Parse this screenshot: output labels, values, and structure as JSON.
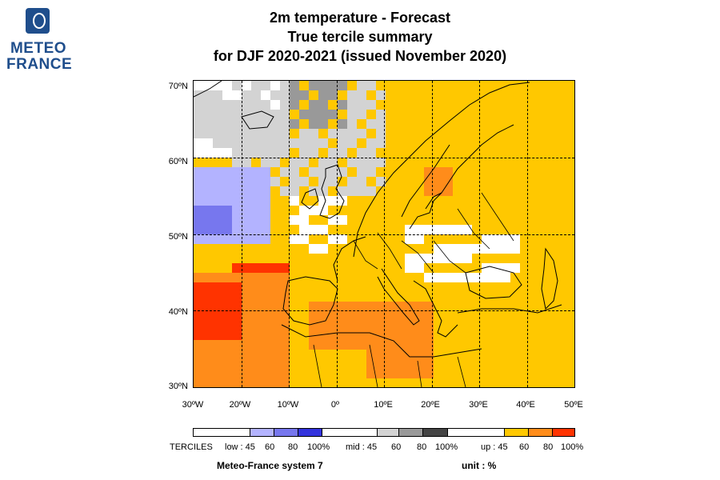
{
  "logo": {
    "line1": "METEO",
    "line2": "FRANCE"
  },
  "title": {
    "line1": "2m temperature   -   Forecast",
    "line2": "True tercile summary",
    "line3": "for DJF 2020-2021   (issued November 2020)"
  },
  "axes": {
    "lat_labels": [
      "70ºN",
      "60ºN",
      "50ºN",
      "40ºN",
      "30ºN"
    ],
    "lon_labels": [
      "30ºW",
      "20ºW",
      "10ºW",
      "0º",
      "10ºE",
      "20ºE",
      "30ºE",
      "40ºE",
      "50ºE"
    ]
  },
  "legend": {
    "prefix": "TERCILES",
    "low": [
      "low : 45",
      "60",
      "80",
      "100%"
    ],
    "mid": [
      "mid : 45",
      "60",
      "80",
      "100%"
    ],
    "up": [
      "up : 45",
      "60",
      "80",
      "100%"
    ],
    "colors": {
      "low": [
        "#b3b3ff",
        "#7777ee",
        "#3333dd"
      ],
      "mid": [
        "#d3d3d3",
        "#999999",
        "#444444"
      ],
      "up": [
        "#ffc800",
        "#ff8c1a",
        "#ff3300"
      ]
    }
  },
  "footer": {
    "system": "Meteo-France system 7",
    "unit": "unit : %"
  }
}
